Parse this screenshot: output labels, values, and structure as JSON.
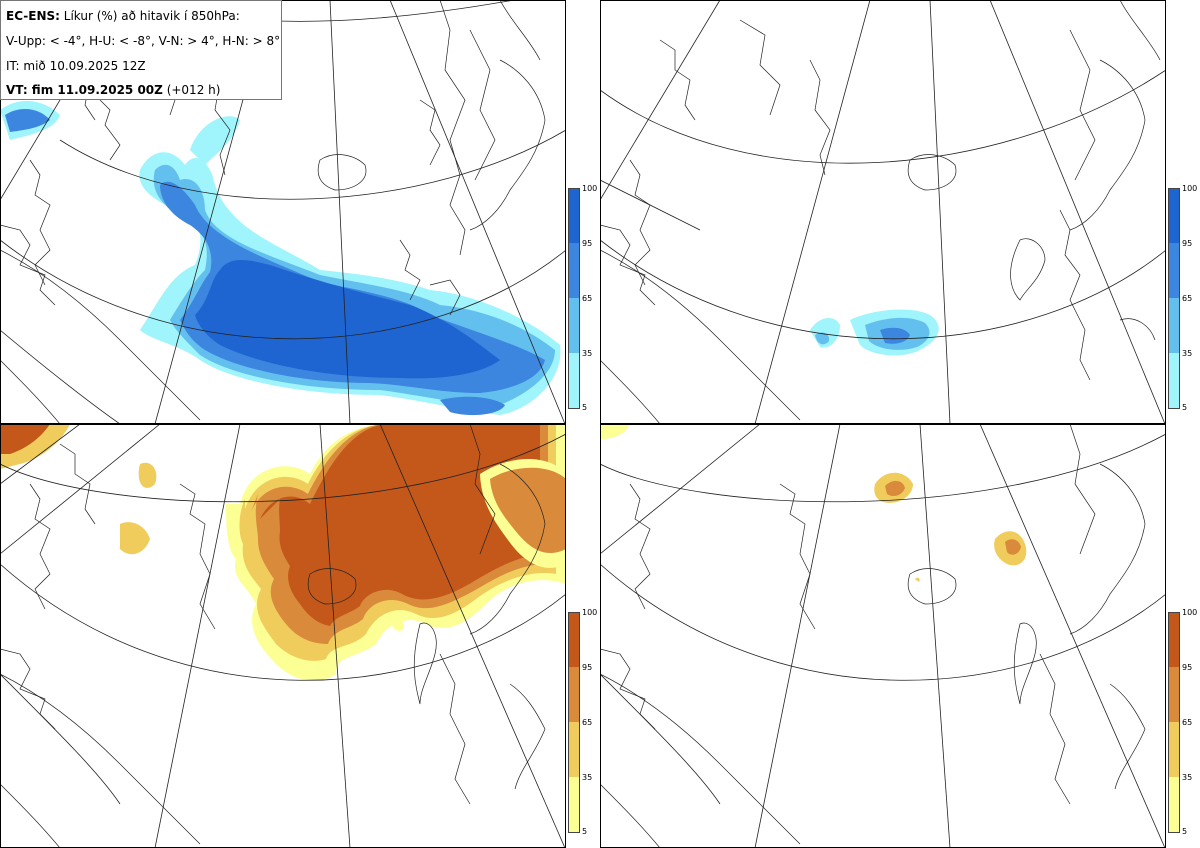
{
  "info": {
    "line1_bold": "EC-ENS:",
    "line1_rest": " Líkur (%) að hitavik í 850hPa:",
    "line2": "V-Upp: < -4°, H-U: < -8°, V-N: > 4°, H-N: > 8°",
    "line3": "IT: mið 10.09.2025 12Z",
    "line4_bold": "VT: fim 11.09.2025 00Z",
    "line4_rest": " (+012 h)"
  },
  "legend": {
    "ticks": [
      "100",
      "95",
      "65",
      "35",
      "5"
    ],
    "cold_colors": [
      "#1f65d1",
      "#3c86e0",
      "#63c0ee",
      "#a0f4fb"
    ],
    "warm_colors": [
      "#c4581a",
      "#d98a3a",
      "#f0cc5c",
      "#fbff94"
    ]
  },
  "panels": [
    {
      "id": "top-left",
      "label": "V-Upp"
    },
    {
      "id": "top-right",
      "label": "H-U"
    },
    {
      "id": "bottom-left",
      "label": "V-N"
    },
    {
      "id": "bottom-right",
      "label": "H-N"
    }
  ]
}
